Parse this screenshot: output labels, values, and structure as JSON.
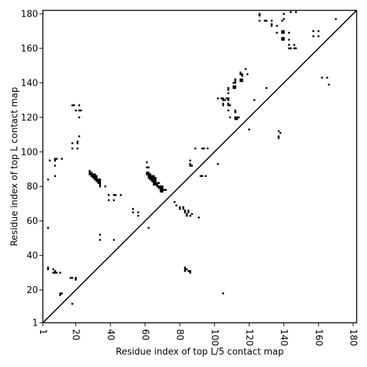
{
  "chart_data": {
    "type": "scatter",
    "title": "",
    "xlabel": "Residue index of top L/5 contact map",
    "ylabel": "Residue index of top L contact map",
    "xlim": [
      1,
      182
    ],
    "ylim": [
      1,
      182
    ],
    "x_ticks": [
      "1",
      "20",
      "40",
      "60",
      "80",
      "100",
      "120",
      "140",
      "160",
      "180"
    ],
    "y_ticks": [
      "1",
      "20",
      "40",
      "60",
      "80",
      "100",
      "120",
      "140",
      "160",
      "180"
    ],
    "diagonal": true,
    "marker": "square",
    "marker_color": "#000000",
    "lower_triangle_points": [
      [
        4,
        33
      ],
      [
        4,
        32
      ],
      [
        7,
        32
      ],
      [
        8,
        31
      ],
      [
        8,
        30
      ],
      [
        7,
        30
      ],
      [
        9,
        30
      ],
      [
        11,
        30
      ],
      [
        11,
        18
      ],
      [
        11,
        17
      ],
      [
        12,
        18
      ],
      [
        17,
        27
      ],
      [
        18,
        27
      ],
      [
        20,
        27
      ],
      [
        20,
        26
      ],
      [
        18,
        12
      ],
      [
        42,
        49
      ],
      [
        34,
        52
      ],
      [
        34,
        49
      ],
      [
        53,
        67
      ],
      [
        53,
        65
      ],
      [
        56,
        65
      ],
      [
        56,
        63
      ],
      [
        62,
        56
      ],
      [
        77,
        71
      ],
      [
        78,
        69
      ],
      [
        80,
        68
      ],
      [
        80,
        67
      ],
      [
        82,
        68
      ],
      [
        82,
        67
      ],
      [
        83,
        66
      ],
      [
        83,
        65
      ],
      [
        84,
        64
      ],
      [
        84,
        63
      ],
      [
        85,
        66
      ],
      [
        85,
        65
      ],
      [
        86,
        63
      ],
      [
        87,
        64
      ],
      [
        91,
        62
      ],
      [
        83,
        33
      ],
      [
        83,
        32
      ],
      [
        84,
        32
      ],
      [
        83,
        31
      ],
      [
        85,
        31
      ],
      [
        86,
        31
      ],
      [
        86,
        30
      ],
      [
        105,
        18
      ],
      [
        89,
        102
      ],
      [
        93,
        102
      ],
      [
        94,
        102
      ],
      [
        96,
        102
      ],
      [
        102,
        93
      ],
      [
        92,
        86
      ],
      [
        93,
        86
      ],
      [
        95,
        86
      ],
      [
        86,
        95
      ],
      [
        86,
        93
      ],
      [
        86,
        92
      ],
      [
        87,
        92
      ],
      [
        102,
        131
      ],
      [
        104,
        131
      ],
      [
        105,
        131
      ],
      [
        105,
        130
      ],
      [
        106,
        130
      ],
      [
        107,
        131
      ],
      [
        108,
        131
      ],
      [
        105,
        128
      ],
      [
        105,
        127
      ],
      [
        108,
        137
      ],
      [
        108,
        136
      ],
      [
        108,
        134
      ],
      [
        108,
        131
      ],
      [
        108,
        130
      ],
      [
        108,
        128
      ],
      [
        108,
        127
      ],
      [
        109,
        127
      ],
      [
        108,
        124
      ],
      [
        109,
        120
      ],
      [
        111,
        140
      ],
      [
        111,
        138
      ],
      [
        111,
        137
      ],
      [
        112,
        142
      ],
      [
        112,
        141
      ],
      [
        112,
        140
      ],
      [
        112,
        138
      ],
      [
        112,
        137
      ],
      [
        112,
        124
      ],
      [
        112,
        123
      ],
      [
        112,
        120
      ],
      [
        113,
        120
      ],
      [
        114,
        120
      ],
      [
        113,
        119
      ],
      [
        112,
        119
      ],
      [
        115,
        146
      ],
      [
        115,
        145
      ],
      [
        116,
        145
      ],
      [
        116,
        144
      ],
      [
        116,
        142
      ],
      [
        115,
        142
      ],
      [
        115,
        141
      ],
      [
        116,
        141
      ],
      [
        118,
        148
      ],
      [
        119,
        145
      ],
      [
        120,
        113
      ],
      [
        123,
        130
      ],
      [
        130,
        137
      ],
      [
        137,
        112
      ],
      [
        138,
        111
      ],
      [
        137,
        109
      ],
      [
        137,
        108
      ]
    ],
    "upper_triangle_points": [
      [
        4,
        84
      ],
      [
        5,
        95
      ],
      [
        8,
        95
      ],
      [
        8,
        96
      ],
      [
        9,
        96
      ],
      [
        8,
        92
      ],
      [
        12,
        96
      ],
      [
        8,
        86
      ],
      [
        18,
        127
      ],
      [
        19,
        127
      ],
      [
        22,
        127
      ],
      [
        20,
        124
      ],
      [
        22,
        124
      ],
      [
        23,
        124
      ],
      [
        22,
        120
      ],
      [
        18,
        105
      ],
      [
        21,
        106
      ],
      [
        21,
        105
      ],
      [
        22,
        109
      ],
      [
        18,
        102
      ],
      [
        21,
        102
      ],
      [
        4,
        56
      ],
      [
        28,
        89
      ],
      [
        28,
        88
      ],
      [
        28,
        87
      ],
      [
        29,
        88
      ],
      [
        29,
        87
      ],
      [
        29,
        86
      ],
      [
        30,
        87
      ],
      [
        30,
        86
      ],
      [
        30,
        85
      ],
      [
        31,
        87
      ],
      [
        31,
        86
      ],
      [
        31,
        85
      ],
      [
        31,
        84
      ],
      [
        32,
        86
      ],
      [
        32,
        85
      ],
      [
        32,
        84
      ],
      [
        32,
        83
      ],
      [
        33,
        84
      ],
      [
        33,
        83
      ],
      [
        33,
        82
      ],
      [
        34,
        84
      ],
      [
        34,
        83
      ],
      [
        34,
        82
      ],
      [
        34,
        81
      ],
      [
        34,
        80
      ],
      [
        37,
        80
      ],
      [
        39,
        75
      ],
      [
        39,
        72
      ],
      [
        42,
        75
      ],
      [
        42,
        72
      ],
      [
        43,
        75
      ],
      [
        46,
        75
      ],
      [
        61,
        94
      ],
      [
        61,
        91
      ],
      [
        62,
        91
      ],
      [
        61,
        88
      ],
      [
        62,
        88
      ],
      [
        61,
        87
      ],
      [
        62,
        87
      ],
      [
        63,
        87
      ],
      [
        62,
        86
      ],
      [
        63,
        86
      ],
      [
        64,
        86
      ],
      [
        65,
        86
      ],
      [
        62,
        85
      ],
      [
        63,
        85
      ],
      [
        64,
        85
      ],
      [
        65,
        85
      ],
      [
        66,
        85
      ],
      [
        63,
        84
      ],
      [
        64,
        84
      ],
      [
        65,
        84
      ],
      [
        66,
        84
      ],
      [
        64,
        83
      ],
      [
        65,
        83
      ],
      [
        66,
        83
      ],
      [
        65,
        82
      ],
      [
        66,
        82
      ],
      [
        67,
        82
      ],
      [
        68,
        82
      ],
      [
        65,
        81
      ],
      [
        66,
        81
      ],
      [
        67,
        81
      ],
      [
        67,
        80
      ],
      [
        68,
        80
      ],
      [
        69,
        80
      ],
      [
        70,
        80
      ],
      [
        68,
        79
      ],
      [
        69,
        79
      ],
      [
        70,
        79
      ],
      [
        69,
        78
      ],
      [
        70,
        78
      ],
      [
        71,
        78
      ],
      [
        72,
        78
      ],
      [
        69,
        77
      ],
      [
        70,
        77
      ],
      [
        126,
        180
      ],
      [
        126,
        179
      ],
      [
        126,
        176
      ],
      [
        129,
        176
      ],
      [
        130,
        176
      ],
      [
        133,
        176
      ],
      [
        133,
        174
      ],
      [
        133,
        173
      ],
      [
        136,
        173
      ],
      [
        136,
        169
      ],
      [
        139,
        176
      ],
      [
        140,
        180
      ],
      [
        140,
        177
      ],
      [
        139,
        170
      ],
      [
        140,
        170
      ],
      [
        139,
        169
      ],
      [
        140,
        169
      ],
      [
        139,
        166
      ],
      [
        140,
        166
      ],
      [
        139,
        165
      ],
      [
        140,
        165
      ],
      [
        143,
        169
      ],
      [
        143,
        165
      ],
      [
        143,
        162
      ],
      [
        143,
        160
      ],
      [
        144,
        160
      ],
      [
        146,
        162
      ],
      [
        146,
        160
      ],
      [
        147,
        160
      ],
      [
        144,
        181
      ],
      [
        147,
        181
      ],
      [
        157,
        170
      ],
      [
        160,
        170
      ],
      [
        157,
        167
      ],
      [
        160,
        167
      ],
      [
        162,
        143
      ],
      [
        165,
        143
      ],
      [
        166,
        139
      ],
      [
        170,
        177
      ]
    ]
  }
}
